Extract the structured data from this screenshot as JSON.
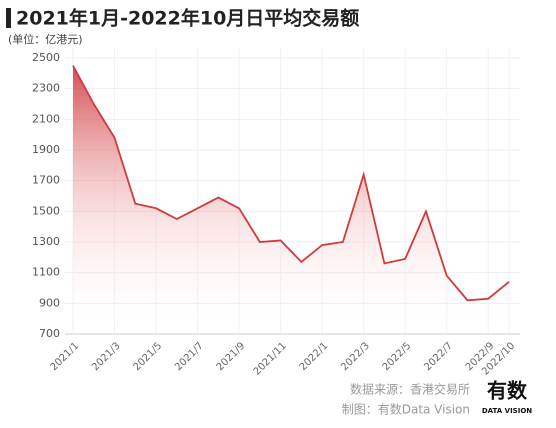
{
  "chart_data": {
    "type": "area",
    "title": "2021年1月-2022年10月日平均交易额",
    "y_label": "(单位：亿港元)",
    "categories": [
      "2021/1",
      null,
      "2021/3",
      null,
      "2021/5",
      null,
      "2021/7",
      null,
      "2021/9",
      null,
      "2021/11",
      null,
      "2022/1",
      null,
      "2022/3",
      null,
      "2022/5",
      null,
      "2022/7",
      null,
      "2022/9",
      "2022/10"
    ],
    "values": [
      2450,
      2200,
      1980,
      1550,
      1520,
      1450,
      1520,
      1590,
      1520,
      1300,
      1310,
      1170,
      1280,
      1300,
      1740,
      1160,
      1190,
      1500,
      1080,
      920,
      930,
      1040
    ],
    "color": "#d03a3f",
    "ylim": [
      700,
      2500
    ],
    "yticks": [
      700,
      900,
      1100,
      1300,
      1500,
      1700,
      1900,
      2100,
      2300,
      2500
    ],
    "grid": true,
    "source": "数据来源：香港交易所",
    "credit": "制图：有数Data Vision",
    "logo": "有数",
    "logo_sub": "DATA VISION"
  }
}
